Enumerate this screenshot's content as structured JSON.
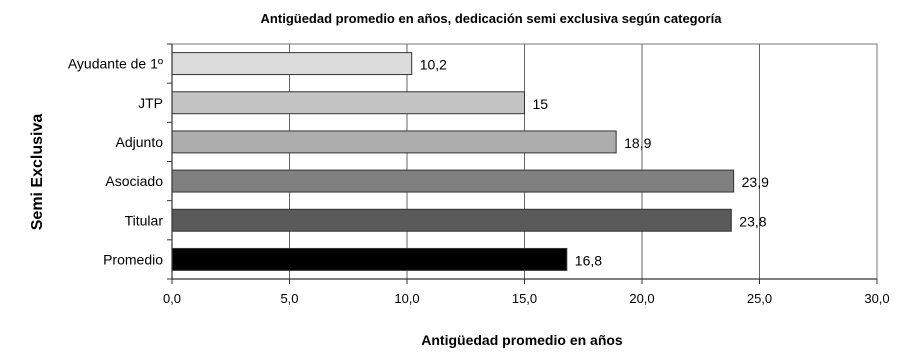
{
  "chart_data": {
    "type": "bar",
    "orientation": "horizontal",
    "title": "Antigüedad promedio en años, dedicación semi exclusiva según categoría",
    "xlabel": "Antigüedad promedio en años",
    "ylabel": "Semi Exclusiva",
    "categories": [
      "Ayudante de 1º",
      "JTP",
      "Adjunto",
      "Asociado",
      "Titular",
      "Promedio"
    ],
    "values": [
      10.2,
      15,
      18.9,
      23.9,
      23.8,
      16.8
    ],
    "value_labels": [
      "10,2",
      "15",
      "18,9",
      "23,9",
      "23,8",
      "16,8"
    ],
    "xlim": [
      0,
      30
    ],
    "xticks": [
      "0,0",
      "5,0",
      "10,0",
      "15,0",
      "20,0",
      "25,0",
      "30,0"
    ],
    "grid": true,
    "legend": "none",
    "bar_colors": [
      "#dcdcdc",
      "#c4c4c4",
      "#adadad",
      "#808080",
      "#5a5a5a",
      "#000000"
    ]
  }
}
